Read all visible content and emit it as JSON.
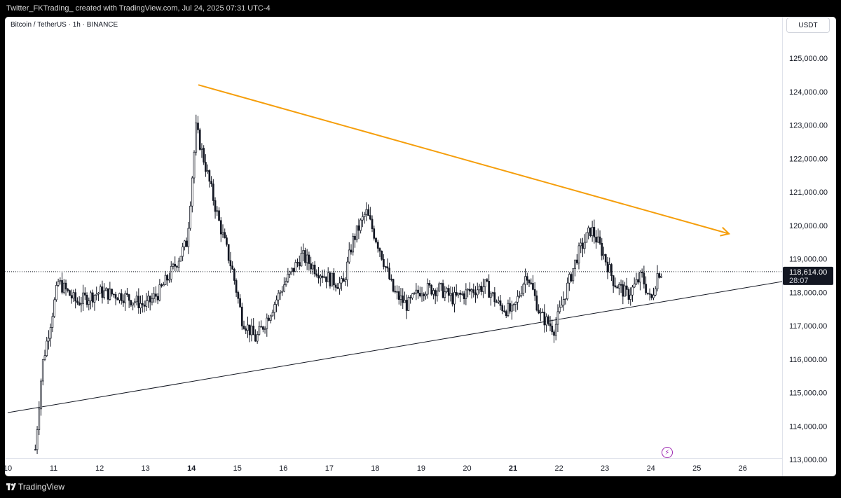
{
  "header": {
    "caption": "Twitter_FKTrading_ created with TradingView.com, Jul 24, 2025 07:31 UTC-4"
  },
  "chart": {
    "symbol": "Bitcoin / TetherUS · 1h · BINANCE",
    "currency": "USDT",
    "price_label": "118,614.00",
    "countdown": "28:07"
  },
  "footer": {
    "brand": "TradingView"
  },
  "colors": {
    "candle": "#131722",
    "trend_arrow": "#f59e0b",
    "support": "#131722",
    "badge": "#131722",
    "zap": "#9c27b0"
  },
  "icons": {
    "event": "lightning-icon",
    "brand": "tradingview-logo-icon"
  },
  "chart_data": {
    "type": "candlestick",
    "title": "Bitcoin / TetherUS · 1h · BINANCE",
    "y_unit": "USDT",
    "ylim": [
      113000,
      125000
    ],
    "yticks": [
      "113,000.00",
      "114,000.00",
      "115,000.00",
      "116,000.00",
      "117,000.00",
      "118,000.00",
      "119,000.00",
      "120,000.00",
      "121,000.00",
      "122,000.00",
      "123,000.00",
      "124,000.00",
      "125,000.00"
    ],
    "x_tick_labels": [
      "10",
      "11",
      "12",
      "13",
      "14",
      "15",
      "16",
      "17",
      "18",
      "19",
      "20",
      "21",
      "22",
      "23",
      "24",
      "25",
      "26"
    ],
    "x_tick_bold": [
      "14",
      "21"
    ],
    "last_price": 118614.0,
    "approx_close_path": [
      {
        "day": 10.6,
        "price": 113300
      },
      {
        "day": 10.75,
        "price": 115800
      },
      {
        "day": 11.1,
        "price": 118300
      },
      {
        "day": 11.5,
        "price": 117700
      },
      {
        "day": 12.0,
        "price": 118000
      },
      {
        "day": 12.5,
        "price": 117900
      },
      {
        "day": 13.0,
        "price": 117600
      },
      {
        "day": 13.3,
        "price": 118000
      },
      {
        "day": 13.6,
        "price": 118700
      },
      {
        "day": 13.9,
        "price": 119500
      },
      {
        "day": 14.1,
        "price": 122900
      },
      {
        "day": 14.3,
        "price": 121800
      },
      {
        "day": 14.6,
        "price": 120100
      },
      {
        "day": 14.9,
        "price": 118600
      },
      {
        "day": 15.1,
        "price": 117200
      },
      {
        "day": 15.4,
        "price": 116600
      },
      {
        "day": 15.6,
        "price": 117100
      },
      {
        "day": 16.0,
        "price": 118200
      },
      {
        "day": 16.4,
        "price": 119100
      },
      {
        "day": 16.7,
        "price": 118700
      },
      {
        "day": 17.0,
        "price": 118400
      },
      {
        "day": 17.3,
        "price": 118200
      },
      {
        "day": 17.5,
        "price": 119500
      },
      {
        "day": 17.8,
        "price": 120400
      },
      {
        "day": 18.1,
        "price": 119300
      },
      {
        "day": 18.4,
        "price": 118000
      },
      {
        "day": 18.7,
        "price": 117600
      },
      {
        "day": 19.0,
        "price": 118100
      },
      {
        "day": 19.4,
        "price": 118100
      },
      {
        "day": 19.7,
        "price": 117800
      },
      {
        "day": 20.0,
        "price": 118000
      },
      {
        "day": 20.4,
        "price": 118200
      },
      {
        "day": 20.7,
        "price": 117600
      },
      {
        "day": 21.0,
        "price": 117400
      },
      {
        "day": 21.3,
        "price": 118600
      },
      {
        "day": 21.6,
        "price": 117300
      },
      {
        "day": 21.9,
        "price": 116900
      },
      {
        "day": 22.1,
        "price": 117800
      },
      {
        "day": 22.4,
        "price": 119100
      },
      {
        "day": 22.7,
        "price": 119900
      },
      {
        "day": 22.95,
        "price": 119200
      },
      {
        "day": 23.2,
        "price": 118300
      },
      {
        "day": 23.5,
        "price": 117900
      },
      {
        "day": 23.8,
        "price": 118500
      },
      {
        "day": 24.0,
        "price": 117700
      },
      {
        "day": 24.15,
        "price": 118600
      },
      {
        "day": 24.25,
        "price": 118614
      }
    ],
    "drawings": [
      {
        "type": "arrow",
        "color": "#f59e0b",
        "from": {
          "day": 14.15,
          "price": 124200
        },
        "to": {
          "day": 25.7,
          "price": 119750
        }
      },
      {
        "type": "trendline",
        "color": "#131722",
        "from": {
          "day": 10.0,
          "price": 114400
        },
        "to": {
          "day": 27.2,
          "price": 118400
        }
      }
    ]
  }
}
